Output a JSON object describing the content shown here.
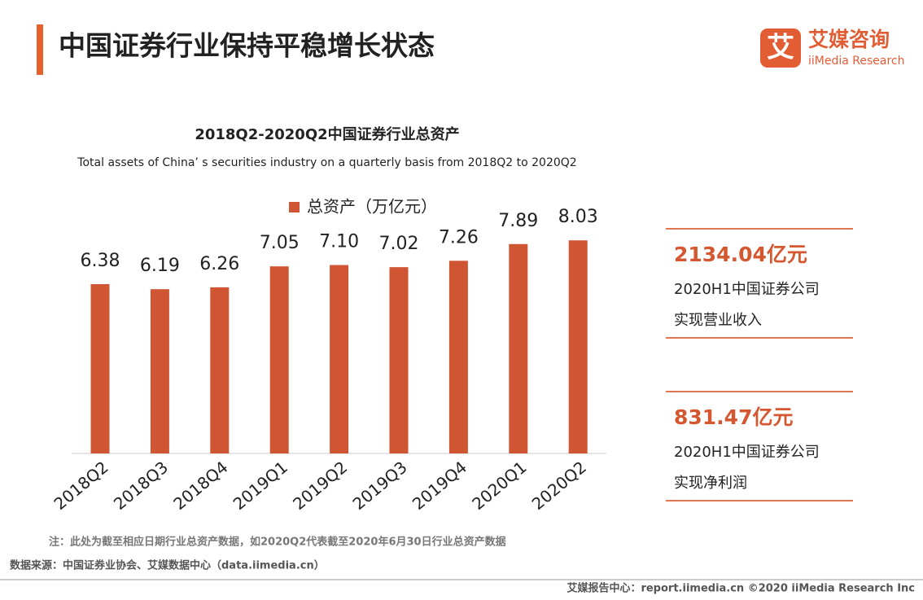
{
  "header": {
    "title": "中国证券行业保持平稳增长状态"
  },
  "logo": {
    "icon": "艾",
    "name": "艾媒咨询",
    "name_en": "iiMedia Research"
  },
  "chart_data": {
    "type": "bar",
    "title": "2018Q2-2020Q2中国证券行业总资产",
    "subtitle": "Total assets of  China’ s securities industry on a quarterly basis  from 2018Q2 to 2020Q2",
    "categories": [
      "2018Q2",
      "2018Q3",
      "2018Q4",
      "2019Q1",
      "2019Q2",
      "2019Q3",
      "2019Q4",
      "2020Q1",
      "2020Q2"
    ],
    "series": [
      {
        "name": "总资产（万亿元）",
        "color": "#cf5533",
        "values": [
          6.38,
          6.19,
          6.26,
          7.05,
          7.1,
          7.02,
          7.26,
          7.89,
          8.03
        ],
        "value_labels": [
          "6.38",
          "6.19",
          "6.26",
          "7.05",
          "7.10",
          "7.02",
          "7.26",
          "7.89",
          "8.03"
        ]
      }
    ],
    "legend": "top"
  },
  "stats": [
    {
      "value": "2134.04亿元",
      "lines": [
        "2020H1中国证券公司",
        "实现营业收入"
      ]
    },
    {
      "value": "831.47亿元",
      "lines": [
        "2020H1中国证券公司",
        "实现净利润"
      ]
    }
  ],
  "note": "注：此处为截至相应日期行业总资产数据，如2020Q2代表截至2020年6月30日行业总资产数据",
  "source": "数据来源：中国证券业协会、艾媒数据中心（data.iimedia.cn）",
  "footer": "艾媒报告中心：report.iimedia.cn  ©2020  iiMedia Research  Inc"
}
